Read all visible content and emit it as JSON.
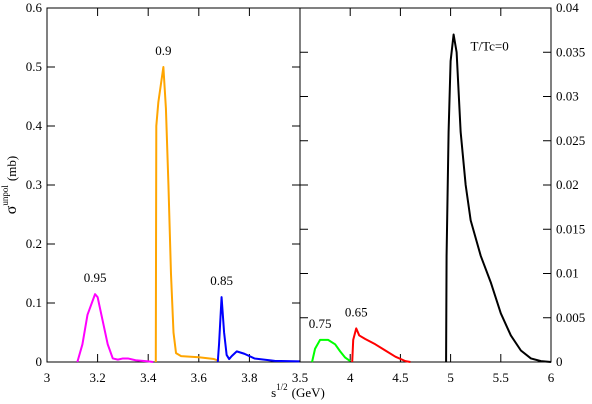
{
  "xlabel": {
    "base": "s",
    "sup": "1/2",
    "unit": "(GeV)"
  },
  "ylabel": {
    "base": "σ",
    "sup": "unpol",
    "unit": "(mb)"
  },
  "chart_data": [
    {
      "type": "line",
      "xlim": [
        3,
        4
      ],
      "ylim": [
        0,
        0.6
      ],
      "xticks": [
        3,
        3.2,
        3.4,
        3.6,
        3.8
      ],
      "yticks": [
        0,
        0.1,
        0.2,
        0.3,
        0.4,
        0.5,
        0.6
      ],
      "yaxis_side": "left",
      "series": [
        {
          "name": "0.95",
          "color": "#ff00ff",
          "x": [
            3.12,
            3.14,
            3.16,
            3.19,
            3.2,
            3.22,
            3.24,
            3.26,
            3.28,
            3.3,
            3.32,
            3.35,
            3.4,
            3.42
          ],
          "values": [
            0,
            0.03,
            0.08,
            0.115,
            0.11,
            0.07,
            0.03,
            0.006,
            0.004,
            0.006,
            0.006,
            0.003,
            0.001,
            0
          ]
        },
        {
          "name": "0.9",
          "color": "#ffa500",
          "x": [
            3.43,
            3.432,
            3.44,
            3.46,
            3.47,
            3.48,
            3.49,
            3.5,
            3.51,
            3.53,
            3.6,
            3.66,
            3.68
          ],
          "values": [
            0,
            0.4,
            0.44,
            0.5,
            0.43,
            0.3,
            0.15,
            0.05,
            0.015,
            0.01,
            0.008,
            0.005,
            0.002
          ]
        },
        {
          "name": "0.85",
          "color": "#0000ff",
          "x": [
            3.675,
            3.68,
            3.69,
            3.7,
            3.71,
            3.72,
            3.73,
            3.75,
            3.78,
            3.82,
            3.9,
            4
          ],
          "values": [
            0,
            0.03,
            0.11,
            0.05,
            0.012,
            0.005,
            0.01,
            0.018,
            0.014,
            0.006,
            0.002,
            0.001
          ]
        }
      ]
    },
    {
      "type": "line",
      "xlim": [
        3.5,
        6
      ],
      "ylim": [
        0,
        0.04
      ],
      "xticks": [
        3.5,
        4,
        4.5,
        5,
        5.5,
        6
      ],
      "yticks": [
        0,
        0.005,
        0.01,
        0.015,
        0.02,
        0.025,
        0.03,
        0.035,
        0.04
      ],
      "yaxis_side": "right",
      "series": [
        {
          "name": "0.75",
          "color": "#00ff00",
          "x": [
            3.62,
            3.65,
            3.7,
            3.78,
            3.85,
            3.9,
            3.95,
            4.0
          ],
          "values": [
            0,
            0.0015,
            0.0025,
            0.0025,
            0.002,
            0.0012,
            0.0005,
            0.0001
          ]
        },
        {
          "name": "0.65",
          "color": "#ff0000",
          "x": [
            4.02,
            4.03,
            4.06,
            4.09,
            4.15,
            4.25,
            4.35,
            4.45,
            4.55,
            4.6
          ],
          "values": [
            0,
            0.0025,
            0.0038,
            0.003,
            0.0026,
            0.002,
            0.0013,
            0.0006,
            0.0001,
            0
          ]
        },
        {
          "name": "T/Tc=0",
          "color": "#000000",
          "x": [
            4.955,
            4.96,
            4.98,
            5.0,
            5.03,
            5.06,
            5.1,
            5.15,
            5.2,
            5.3,
            5.4,
            5.5,
            5.6,
            5.7,
            5.8,
            5.9,
            6
          ],
          "values": [
            0,
            0.012,
            0.026,
            0.034,
            0.037,
            0.035,
            0.026,
            0.02,
            0.016,
            0.012,
            0.009,
            0.0055,
            0.003,
            0.0013,
            0.0004,
            0.0001,
            0
          ]
        }
      ]
    }
  ]
}
